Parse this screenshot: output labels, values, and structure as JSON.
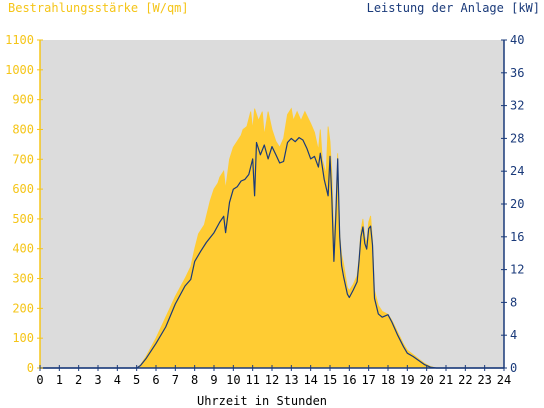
{
  "chart_data": {
    "type": "area",
    "left_axis": {
      "label": "Bestrahlungsstärke [W/qm]",
      "min": 0,
      "max": 1100,
      "ticks": [
        0,
        100,
        200,
        300,
        400,
        500,
        600,
        700,
        800,
        900,
        1000,
        1100
      ],
      "color": "#f5c518"
    },
    "right_axis": {
      "label": "Leistung der Anlage [kW]",
      "min": 0,
      "max": 40,
      "ticks": [
        0,
        4,
        8,
        12,
        16,
        20,
        24,
        28,
        32,
        36,
        40
      ],
      "color": "#1a3a7a"
    },
    "x_axis": {
      "label": "Uhrzeit in Stunden",
      "min": 0,
      "max": 24,
      "ticks": [
        "0",
        "1",
        "2",
        "3",
        "4",
        "5",
        "6",
        "7",
        "8",
        "9",
        "10",
        "11",
        "12",
        "13",
        "14",
        "15",
        "16",
        "17",
        "18",
        "19",
        "20",
        "21",
        "22",
        "23",
        "24"
      ]
    },
    "grid": false,
    "plot_background": "#dcdcdc",
    "series": [
      {
        "name": "Bestrahlungsstärke",
        "axis": "left",
        "style": "area",
        "color": "#ffcc33",
        "points": [
          [
            0,
            0
          ],
          [
            5,
            0
          ],
          [
            5.2,
            10
          ],
          [
            5.5,
            40
          ],
          [
            6,
            100
          ],
          [
            6.5,
            170
          ],
          [
            7,
            240
          ],
          [
            7.5,
            300
          ],
          [
            7.8,
            340
          ],
          [
            8,
            400
          ],
          [
            8.2,
            450
          ],
          [
            8.5,
            480
          ],
          [
            8.8,
            560
          ],
          [
            9,
            600
          ],
          [
            9.2,
            620
          ],
          [
            9.3,
            640
          ],
          [
            9.5,
            660
          ],
          [
            9.6,
            600
          ],
          [
            9.8,
            700
          ],
          [
            10,
            740
          ],
          [
            10.2,
            760
          ],
          [
            10.4,
            780
          ],
          [
            10.5,
            800
          ],
          [
            10.7,
            810
          ],
          [
            10.9,
            860
          ],
          [
            11,
            800
          ],
          [
            11.1,
            870
          ],
          [
            11.3,
            830
          ],
          [
            11.5,
            860
          ],
          [
            11.6,
            780
          ],
          [
            11.8,
            860
          ],
          [
            12,
            800
          ],
          [
            12.2,
            760
          ],
          [
            12.4,
            740
          ],
          [
            12.6,
            770
          ],
          [
            12.8,
            850
          ],
          [
            13,
            870
          ],
          [
            13.1,
            830
          ],
          [
            13.3,
            860
          ],
          [
            13.5,
            830
          ],
          [
            13.7,
            860
          ],
          [
            14,
            820
          ],
          [
            14.2,
            790
          ],
          [
            14.4,
            730
          ],
          [
            14.5,
            800
          ],
          [
            14.6,
            700
          ],
          [
            14.8,
            650
          ],
          [
            14.9,
            810
          ],
          [
            15.0,
            760
          ],
          [
            15.1,
            650
          ],
          [
            15.2,
            430
          ],
          [
            15.3,
            540
          ],
          [
            15.4,
            720
          ],
          [
            15.5,
            450
          ],
          [
            15.6,
            380
          ],
          [
            15.7,
            350
          ],
          [
            15.9,
            270
          ],
          [
            16.0,
            260
          ],
          [
            16.2,
            280
          ],
          [
            16.4,
            310
          ],
          [
            16.5,
            370
          ],
          [
            16.6,
            460
          ],
          [
            16.7,
            500
          ],
          [
            16.8,
            440
          ],
          [
            16.9,
            420
          ],
          [
            17.0,
            490
          ],
          [
            17.1,
            510
          ],
          [
            17.2,
            430
          ],
          [
            17.3,
            260
          ],
          [
            17.5,
            210
          ],
          [
            17.7,
            190
          ],
          [
            18,
            180
          ],
          [
            18.2,
            160
          ],
          [
            18.5,
            120
          ],
          [
            18.8,
            80
          ],
          [
            19,
            60
          ],
          [
            19.3,
            45
          ],
          [
            19.6,
            30
          ],
          [
            19.9,
            15
          ],
          [
            20.2,
            5
          ],
          [
            20.5,
            0
          ],
          [
            24,
            0
          ]
        ]
      },
      {
        "name": "Leistung der Anlage",
        "axis": "right",
        "style": "line",
        "color": "#1a3a7a",
        "points": [
          [
            0,
            0
          ],
          [
            5,
            0
          ],
          [
            5.2,
            0.3
          ],
          [
            5.5,
            1.2
          ],
          [
            6,
            3
          ],
          [
            6.5,
            5
          ],
          [
            7,
            7.8
          ],
          [
            7.5,
            10
          ],
          [
            7.8,
            10.8
          ],
          [
            8,
            13
          ],
          [
            8.3,
            14.2
          ],
          [
            8.6,
            15.3
          ],
          [
            9,
            16.5
          ],
          [
            9.3,
            17.8
          ],
          [
            9.5,
            18.5
          ],
          [
            9.6,
            16.5
          ],
          [
            9.8,
            20.2
          ],
          [
            10,
            21.8
          ],
          [
            10.2,
            22.1
          ],
          [
            10.4,
            22.8
          ],
          [
            10.6,
            23.0
          ],
          [
            10.8,
            23.6
          ],
          [
            11,
            25.5
          ],
          [
            11.1,
            21.0
          ],
          [
            11.2,
            27.5
          ],
          [
            11.4,
            26.0
          ],
          [
            11.6,
            27.2
          ],
          [
            11.8,
            25.5
          ],
          [
            12,
            27.0
          ],
          [
            12.2,
            26.0
          ],
          [
            12.4,
            25.0
          ],
          [
            12.6,
            25.2
          ],
          [
            12.8,
            27.5
          ],
          [
            13,
            28.0
          ],
          [
            13.2,
            27.6
          ],
          [
            13.4,
            28.1
          ],
          [
            13.6,
            27.8
          ],
          [
            13.8,
            26.8
          ],
          [
            14,
            25.5
          ],
          [
            14.2,
            25.8
          ],
          [
            14.4,
            24.5
          ],
          [
            14.5,
            26.2
          ],
          [
            14.7,
            23.0
          ],
          [
            14.9,
            21.0
          ],
          [
            15.0,
            25.8
          ],
          [
            15.1,
            20.5
          ],
          [
            15.2,
            13.0
          ],
          [
            15.3,
            18.5
          ],
          [
            15.4,
            25.5
          ],
          [
            15.5,
            16.0
          ],
          [
            15.6,
            12.5
          ],
          [
            15.7,
            11.2
          ],
          [
            15.9,
            9.0
          ],
          [
            16.0,
            8.6
          ],
          [
            16.2,
            9.5
          ],
          [
            16.4,
            10.5
          ],
          [
            16.5,
            13.0
          ],
          [
            16.6,
            16.0
          ],
          [
            16.7,
            17.2
          ],
          [
            16.8,
            15.2
          ],
          [
            16.9,
            14.5
          ],
          [
            17.0,
            17.0
          ],
          [
            17.1,
            17.3
          ],
          [
            17.2,
            15.0
          ],
          [
            17.3,
            8.5
          ],
          [
            17.5,
            6.6
          ],
          [
            17.7,
            6.2
          ],
          [
            18,
            6.5
          ],
          [
            18.2,
            5.6
          ],
          [
            18.5,
            4.0
          ],
          [
            18.8,
            2.6
          ],
          [
            19,
            1.8
          ],
          [
            19.3,
            1.4
          ],
          [
            19.6,
            0.9
          ],
          [
            19.9,
            0.4
          ],
          [
            20.2,
            0.1
          ],
          [
            20.5,
            0
          ],
          [
            24,
            0
          ]
        ]
      }
    ]
  }
}
